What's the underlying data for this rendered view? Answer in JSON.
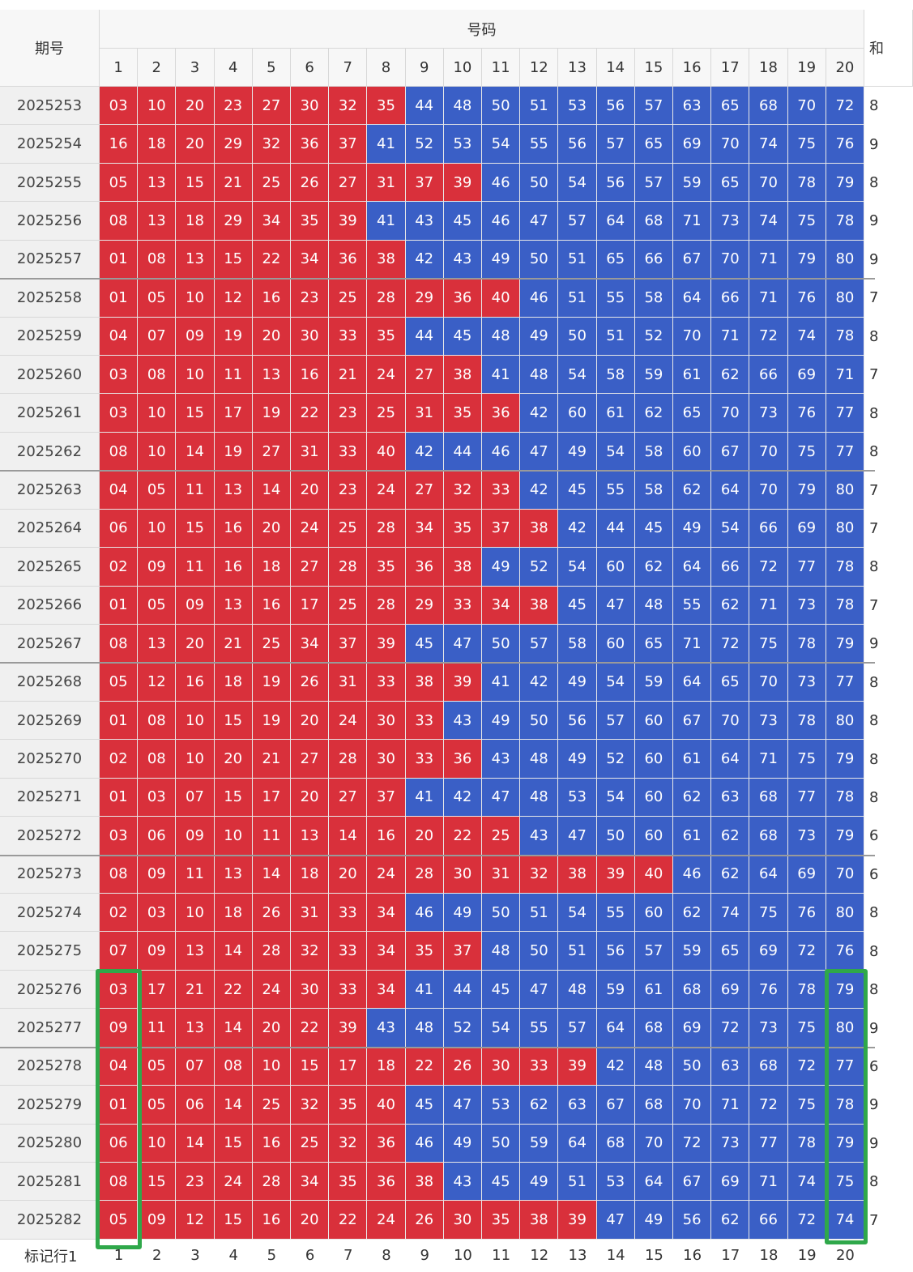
{
  "header": {
    "period": "期号",
    "numbers": "号码",
    "extra": "和"
  },
  "columns": [
    "1",
    "2",
    "3",
    "4",
    "5",
    "6",
    "7",
    "8",
    "9",
    "10",
    "11",
    "12",
    "13",
    "14",
    "15",
    "16",
    "17",
    "18",
    "19",
    "20"
  ],
  "colors": {
    "low": "#d9303b",
    "high": "#3a5fc6",
    "low_max": 40
  },
  "table": {
    "rows": [
      {
        "period": "2025253",
        "numbers": [
          "03",
          "10",
          "20",
          "23",
          "27",
          "30",
          "32",
          "35",
          "44",
          "48",
          "50",
          "51",
          "53",
          "56",
          "57",
          "63",
          "65",
          "68",
          "70",
          "72"
        ],
        "extra": "8"
      },
      {
        "period": "2025254",
        "numbers": [
          "16",
          "18",
          "20",
          "29",
          "32",
          "36",
          "37",
          "41",
          "52",
          "53",
          "54",
          "55",
          "56",
          "57",
          "65",
          "69",
          "70",
          "74",
          "75",
          "76"
        ],
        "extra": "9"
      },
      {
        "period": "2025255",
        "numbers": [
          "05",
          "13",
          "15",
          "21",
          "25",
          "26",
          "27",
          "31",
          "37",
          "39",
          "46",
          "50",
          "54",
          "56",
          "57",
          "59",
          "65",
          "70",
          "78",
          "79"
        ],
        "extra": "8"
      },
      {
        "period": "2025256",
        "numbers": [
          "08",
          "13",
          "18",
          "29",
          "34",
          "35",
          "39",
          "41",
          "43",
          "45",
          "46",
          "47",
          "57",
          "64",
          "68",
          "71",
          "73",
          "74",
          "75",
          "78"
        ],
        "extra": "9"
      },
      {
        "period": "2025257",
        "numbers": [
          "01",
          "08",
          "13",
          "15",
          "22",
          "34",
          "36",
          "38",
          "42",
          "43",
          "49",
          "50",
          "51",
          "65",
          "66",
          "67",
          "70",
          "71",
          "79",
          "80"
        ],
        "extra": "9"
      },
      {
        "period": "2025258",
        "numbers": [
          "01",
          "05",
          "10",
          "12",
          "16",
          "23",
          "25",
          "28",
          "29",
          "36",
          "40",
          "46",
          "51",
          "55",
          "58",
          "64",
          "66",
          "71",
          "76",
          "80"
        ],
        "extra": "7"
      },
      {
        "period": "2025259",
        "numbers": [
          "04",
          "07",
          "09",
          "19",
          "20",
          "30",
          "33",
          "35",
          "44",
          "45",
          "48",
          "49",
          "50",
          "51",
          "52",
          "70",
          "71",
          "72",
          "74",
          "78"
        ],
        "extra": "8"
      },
      {
        "period": "2025260",
        "numbers": [
          "03",
          "08",
          "10",
          "11",
          "13",
          "16",
          "21",
          "24",
          "27",
          "38",
          "41",
          "48",
          "54",
          "58",
          "59",
          "61",
          "62",
          "66",
          "69",
          "71"
        ],
        "extra": "7"
      },
      {
        "period": "2025261",
        "numbers": [
          "03",
          "10",
          "15",
          "17",
          "19",
          "22",
          "23",
          "25",
          "31",
          "35",
          "36",
          "42",
          "60",
          "61",
          "62",
          "65",
          "70",
          "73",
          "76",
          "77"
        ],
        "extra": "8"
      },
      {
        "period": "2025262",
        "numbers": [
          "08",
          "10",
          "14",
          "19",
          "27",
          "31",
          "33",
          "40",
          "42",
          "44",
          "46",
          "47",
          "49",
          "54",
          "58",
          "60",
          "67",
          "70",
          "75",
          "77"
        ],
        "extra": "8"
      },
      {
        "period": "2025263",
        "numbers": [
          "04",
          "05",
          "11",
          "13",
          "14",
          "20",
          "23",
          "24",
          "27",
          "32",
          "33",
          "42",
          "45",
          "55",
          "58",
          "62",
          "64",
          "70",
          "79",
          "80"
        ],
        "extra": "7"
      },
      {
        "period": "2025264",
        "numbers": [
          "06",
          "10",
          "15",
          "16",
          "20",
          "24",
          "25",
          "28",
          "34",
          "35",
          "37",
          "38",
          "42",
          "44",
          "45",
          "49",
          "54",
          "66",
          "69",
          "80"
        ],
        "extra": "7"
      },
      {
        "period": "2025265",
        "numbers": [
          "02",
          "09",
          "11",
          "16",
          "18",
          "27",
          "28",
          "35",
          "36",
          "38",
          "49",
          "52",
          "54",
          "60",
          "62",
          "64",
          "66",
          "72",
          "77",
          "78"
        ],
        "extra": "8"
      },
      {
        "period": "2025266",
        "numbers": [
          "01",
          "05",
          "09",
          "13",
          "16",
          "17",
          "25",
          "28",
          "29",
          "33",
          "34",
          "38",
          "45",
          "47",
          "48",
          "55",
          "62",
          "71",
          "73",
          "78"
        ],
        "extra": "7"
      },
      {
        "period": "2025267",
        "numbers": [
          "08",
          "13",
          "20",
          "21",
          "25",
          "34",
          "37",
          "39",
          "45",
          "47",
          "50",
          "57",
          "58",
          "60",
          "65",
          "71",
          "72",
          "75",
          "78",
          "79"
        ],
        "extra": "9"
      },
      {
        "period": "2025268",
        "numbers": [
          "05",
          "12",
          "16",
          "18",
          "19",
          "26",
          "31",
          "33",
          "38",
          "39",
          "41",
          "42",
          "49",
          "54",
          "59",
          "64",
          "65",
          "70",
          "73",
          "77"
        ],
        "extra": "8"
      },
      {
        "period": "2025269",
        "numbers": [
          "01",
          "08",
          "10",
          "15",
          "19",
          "20",
          "24",
          "30",
          "33",
          "43",
          "49",
          "50",
          "56",
          "57",
          "60",
          "67",
          "70",
          "73",
          "78",
          "80"
        ],
        "extra": "8"
      },
      {
        "period": "2025270",
        "numbers": [
          "02",
          "08",
          "10",
          "20",
          "21",
          "27",
          "28",
          "30",
          "33",
          "36",
          "43",
          "48",
          "49",
          "52",
          "60",
          "61",
          "64",
          "71",
          "75",
          "79"
        ],
        "extra": "8"
      },
      {
        "period": "2025271",
        "numbers": [
          "01",
          "03",
          "07",
          "15",
          "17",
          "20",
          "27",
          "37",
          "41",
          "42",
          "47",
          "48",
          "53",
          "54",
          "60",
          "62",
          "63",
          "68",
          "77",
          "78"
        ],
        "extra": "8"
      },
      {
        "period": "2025272",
        "numbers": [
          "03",
          "06",
          "09",
          "10",
          "11",
          "13",
          "14",
          "16",
          "20",
          "22",
          "25",
          "43",
          "47",
          "50",
          "60",
          "61",
          "62",
          "68",
          "73",
          "79"
        ],
        "extra": "6"
      },
      {
        "period": "2025273",
        "numbers": [
          "08",
          "09",
          "11",
          "13",
          "14",
          "18",
          "20",
          "24",
          "28",
          "30",
          "31",
          "32",
          "38",
          "39",
          "40",
          "46",
          "62",
          "64",
          "69",
          "70"
        ],
        "extra": "6"
      },
      {
        "period": "2025274",
        "numbers": [
          "02",
          "03",
          "10",
          "18",
          "26",
          "31",
          "33",
          "34",
          "46",
          "49",
          "50",
          "51",
          "54",
          "55",
          "60",
          "62",
          "74",
          "75",
          "76",
          "80"
        ],
        "extra": "8"
      },
      {
        "period": "2025275",
        "numbers": [
          "07",
          "09",
          "13",
          "14",
          "28",
          "32",
          "33",
          "34",
          "35",
          "37",
          "48",
          "50",
          "51",
          "56",
          "57",
          "59",
          "65",
          "69",
          "72",
          "76"
        ],
        "extra": "8"
      },
      {
        "period": "2025276",
        "numbers": [
          "03",
          "17",
          "21",
          "22",
          "24",
          "30",
          "33",
          "34",
          "41",
          "44",
          "45",
          "47",
          "48",
          "59",
          "61",
          "68",
          "69",
          "76",
          "78",
          "79"
        ],
        "extra": "8"
      },
      {
        "period": "2025277",
        "numbers": [
          "09",
          "11",
          "13",
          "14",
          "20",
          "22",
          "39",
          "43",
          "48",
          "52",
          "54",
          "55",
          "57",
          "64",
          "68",
          "69",
          "72",
          "73",
          "75",
          "80"
        ],
        "extra": "9"
      },
      {
        "period": "2025278",
        "numbers": [
          "04",
          "05",
          "07",
          "08",
          "10",
          "15",
          "17",
          "18",
          "22",
          "26",
          "30",
          "33",
          "39",
          "42",
          "48",
          "50",
          "63",
          "68",
          "72",
          "77"
        ],
        "extra": "6"
      },
      {
        "period": "2025279",
        "numbers": [
          "01",
          "05",
          "06",
          "14",
          "25",
          "32",
          "35",
          "40",
          "45",
          "47",
          "53",
          "62",
          "63",
          "67",
          "68",
          "70",
          "71",
          "72",
          "75",
          "78"
        ],
        "extra": "9"
      },
      {
        "period": "2025280",
        "numbers": [
          "06",
          "10",
          "14",
          "15",
          "16",
          "25",
          "32",
          "36",
          "46",
          "49",
          "50",
          "59",
          "64",
          "68",
          "70",
          "72",
          "73",
          "77",
          "78",
          "79"
        ],
        "extra": "9"
      },
      {
        "period": "2025281",
        "numbers": [
          "08",
          "15",
          "23",
          "24",
          "28",
          "34",
          "35",
          "36",
          "38",
          "43",
          "45",
          "49",
          "51",
          "53",
          "64",
          "67",
          "69",
          "71",
          "74",
          "75"
        ],
        "extra": "8"
      },
      {
        "period": "2025282",
        "numbers": [
          "05",
          "09",
          "12",
          "15",
          "16",
          "20",
          "22",
          "24",
          "26",
          "30",
          "35",
          "38",
          "39",
          "47",
          "49",
          "56",
          "62",
          "66",
          "72",
          "74"
        ],
        "extra": "7"
      }
    ]
  },
  "footer": {
    "label": "标记行1",
    "numbers": [
      "1",
      "2",
      "3",
      "4",
      "5",
      "6",
      "7",
      "8",
      "9",
      "10",
      "11",
      "12",
      "13",
      "14",
      "15",
      "16",
      "17",
      "18",
      "19",
      "20"
    ]
  }
}
